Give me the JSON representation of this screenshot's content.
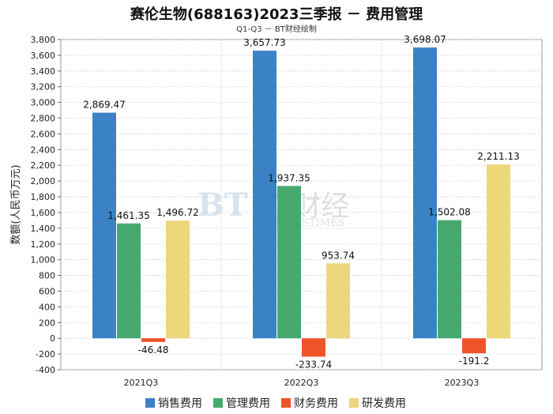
{
  "title": "赛伦生物(688163)2023三季报 － 费用管理",
  "subtitle": "Q1-Q3 － BT财经绘制",
  "watermark": {
    "cn": "BT财经",
    "en": "BUSINESSTIMES",
    "mark": "BT"
  },
  "chart_data": {
    "type": "bar",
    "title": "赛伦生物(688163)2023三季报 － 费用管理",
    "subtitle": "Q1-Q3 － BT财经绘制",
    "xlabel": "",
    "ylabel": "数额(人民币万元)",
    "ylim": [
      -400,
      3800
    ],
    "ytick_step": 200,
    "grid": true,
    "legend_position": "bottom",
    "categories": [
      "2021Q3",
      "2022Q3",
      "2023Q3"
    ],
    "series": [
      {
        "name": "销售费用",
        "color": "#3a82c4",
        "values": [
          2869.47,
          3657.73,
          3698.07
        ],
        "labels": [
          "2,869.47",
          "3,657.73",
          "3,698.07"
        ]
      },
      {
        "name": "管理费用",
        "color": "#47a96f",
        "values": [
          1461.35,
          1937.35,
          1502.08
        ],
        "labels": [
          "1,461.35",
          "1,937.35",
          "1,502.08"
        ]
      },
      {
        "name": "财务费用",
        "color": "#ef5428",
        "values": [
          -46.48,
          -233.74,
          -191.2
        ],
        "labels": [
          "-46.48",
          "-233.74",
          "-191.2"
        ]
      },
      {
        "name": "研发费用",
        "color": "#edd77b",
        "values": [
          1496.72,
          953.74,
          2211.13
        ],
        "labels": [
          "1,496.72",
          "953.74",
          "2,211.13"
        ]
      }
    ]
  }
}
